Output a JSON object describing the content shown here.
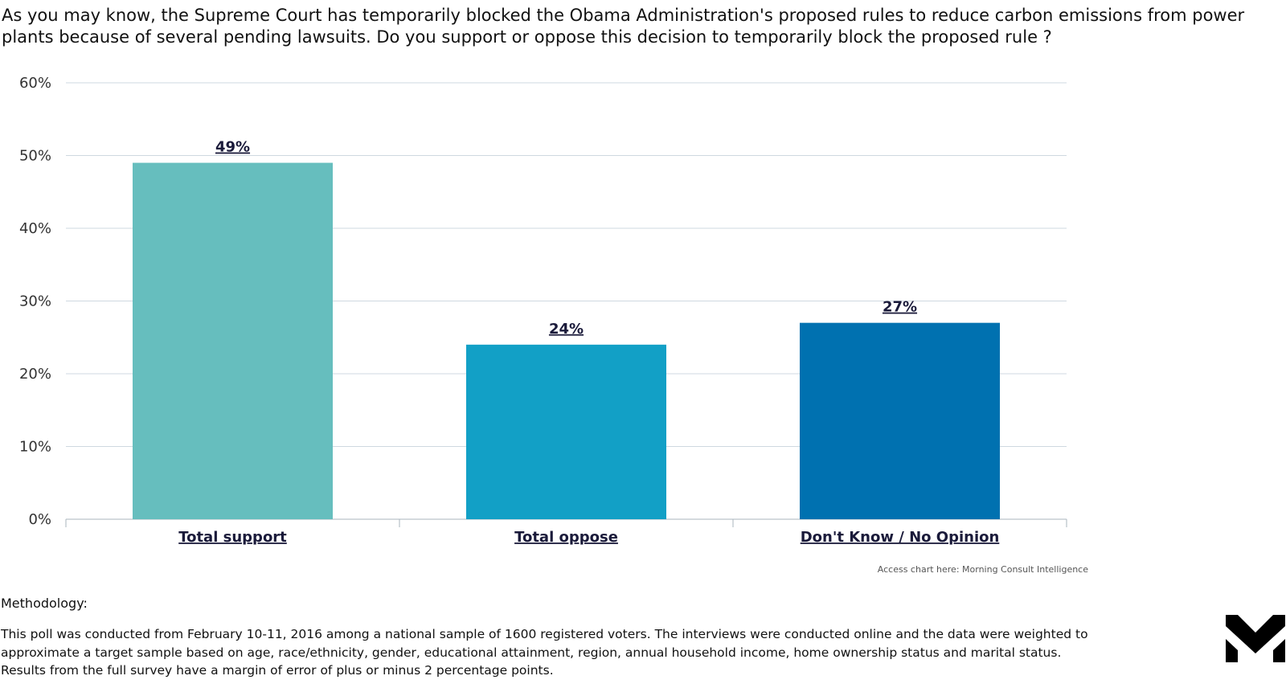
{
  "question": "As you may know, the Supreme Court has temporarily blocked the Obama Administration's proposed rules to reduce carbon emissions from power plants because of several pending lawsuits. Do you support or oppose this decision to temporarily block the proposed rule ?",
  "chart_data": {
    "type": "bar",
    "title": "",
    "xlabel": "",
    "ylabel": "",
    "categories": [
      "Total support",
      "Total oppose",
      "Don't Know / No Opinion"
    ],
    "values": [
      49,
      24,
      27
    ],
    "value_labels": [
      "49%",
      "24%",
      "27%"
    ],
    "colors": [
      "#66bebe",
      "#12a0c6",
      "#0071b0"
    ],
    "ylim": [
      0,
      60
    ],
    "yticks": [
      "0%",
      "10%",
      "20%",
      "30%",
      "40%",
      "50%",
      "60%"
    ],
    "grid": true,
    "legend": "none"
  },
  "source_link": "Access chart here: Morning Consult Intelligence",
  "methodology": {
    "heading": "Methodology:",
    "text": "This poll was conducted from February 10-11, 2016 among a national sample of 1600 registered voters. The interviews were conducted online and the data were weighted to approximate a target sample based on age, race/ethnicity, gender, educational attainment, region, annual household income, home ownership status and marital status. Results from the full survey have a margin of error of plus or minus 2 percentage points."
  },
  "logo": {
    "icon": "morning-consult-logo-icon",
    "color": "#000000"
  },
  "colors": {
    "grid": "#cfd8e0",
    "axis": "#aab4be"
  }
}
